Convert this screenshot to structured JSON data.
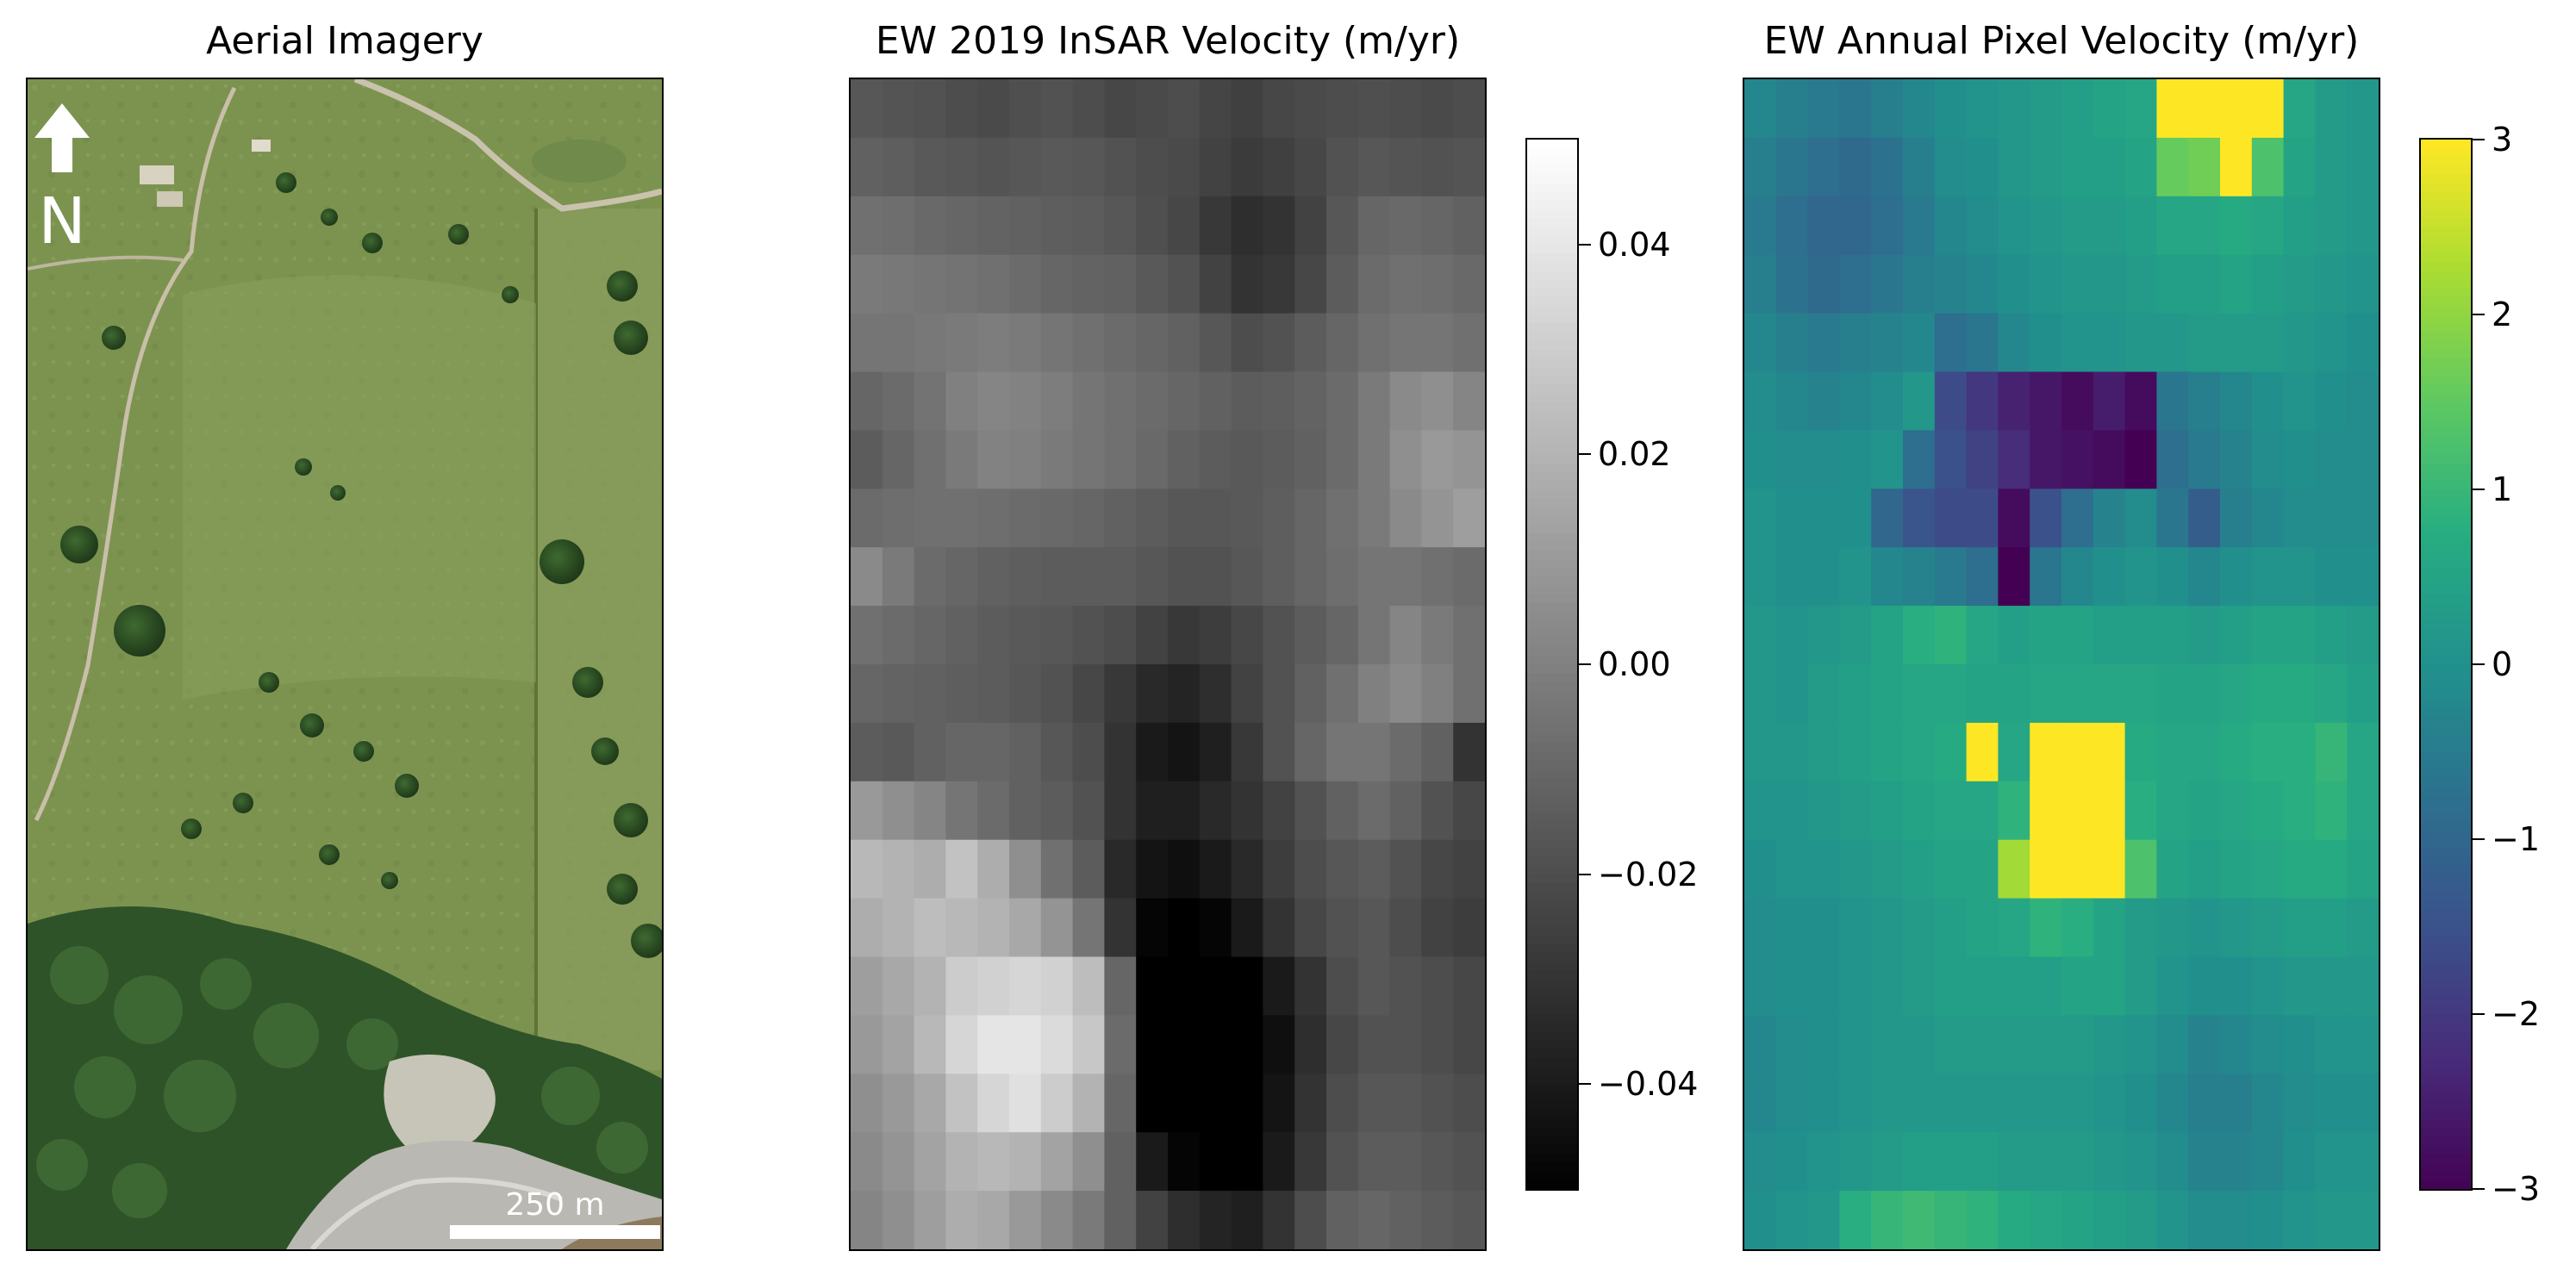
{
  "panels": [
    {
      "title": "Aerial Imagery",
      "north_label": "N",
      "scale_bar_label": "250 m"
    },
    {
      "title": "EW 2019 InSAR Velocity (m/yr)",
      "colormap": "gray",
      "colorbar": {
        "min": -0.05,
        "max": 0.05,
        "ticks": [
          0.04,
          0.02,
          0.0,
          -0.02,
          -0.04
        ],
        "tick_labels": [
          "0.04",
          "0.02",
          "0.00",
          "−0.02",
          "−0.04"
        ]
      }
    },
    {
      "title": "EW Annual Pixel Velocity (m/yr)",
      "colormap": "viridis",
      "colorbar": {
        "min": -3,
        "max": 3,
        "ticks": [
          3,
          2,
          1,
          0,
          -1,
          -2,
          -3
        ],
        "tick_labels": [
          "3",
          "2",
          "1",
          "0",
          "−1",
          "−2",
          "−3"
        ]
      }
    }
  ],
  "chart_data": [
    {
      "type": "heatmap",
      "title": "EW 2019 InSAR Velocity (m/yr)",
      "colormap": "gray",
      "vmin": -0.05,
      "vmax": 0.05,
      "rows": 20,
      "cols": 20,
      "values": [
        [
          -0.016,
          -0.017,
          -0.018,
          -0.02,
          -0.021,
          -0.019,
          -0.018,
          -0.02,
          -0.022,
          -0.021,
          -0.02,
          -0.023,
          -0.025,
          -0.022,
          -0.021,
          -0.02,
          -0.019,
          -0.02,
          -0.021,
          -0.02
        ],
        [
          -0.012,
          -0.013,
          -0.015,
          -0.016,
          -0.017,
          -0.016,
          -0.015,
          -0.016,
          -0.018,
          -0.02,
          -0.021,
          -0.024,
          -0.027,
          -0.025,
          -0.022,
          -0.018,
          -0.016,
          -0.017,
          -0.018,
          -0.017
        ],
        [
          -0.006,
          -0.007,
          -0.009,
          -0.01,
          -0.011,
          -0.012,
          -0.013,
          -0.014,
          -0.016,
          -0.019,
          -0.022,
          -0.028,
          -0.032,
          -0.03,
          -0.024,
          -0.016,
          -0.01,
          -0.009,
          -0.01,
          -0.012
        ],
        [
          -0.002,
          -0.003,
          -0.004,
          -0.005,
          -0.006,
          -0.008,
          -0.01,
          -0.011,
          -0.012,
          -0.015,
          -0.018,
          -0.024,
          -0.03,
          -0.028,
          -0.022,
          -0.014,
          -0.008,
          -0.006,
          -0.007,
          -0.009
        ],
        [
          -0.004,
          -0.004,
          -0.003,
          -0.002,
          -0.001,
          -0.002,
          -0.004,
          -0.006,
          -0.008,
          -0.01,
          -0.012,
          -0.016,
          -0.02,
          -0.018,
          -0.014,
          -0.01,
          -0.006,
          -0.004,
          -0.004,
          -0.006
        ],
        [
          -0.01,
          -0.008,
          -0.005,
          0.0,
          0.002,
          0.001,
          -0.001,
          -0.004,
          -0.006,
          -0.008,
          -0.01,
          -0.012,
          -0.014,
          -0.013,
          -0.011,
          -0.008,
          -0.002,
          0.004,
          0.006,
          0.002
        ],
        [
          -0.014,
          -0.01,
          -0.006,
          -0.002,
          0.001,
          0.0,
          -0.002,
          -0.004,
          -0.006,
          -0.009,
          -0.012,
          -0.014,
          -0.015,
          -0.014,
          -0.012,
          -0.008,
          -0.002,
          0.006,
          0.01,
          0.008
        ],
        [
          -0.008,
          -0.007,
          -0.006,
          -0.006,
          -0.007,
          -0.008,
          -0.009,
          -0.01,
          -0.012,
          -0.014,
          -0.016,
          -0.016,
          -0.015,
          -0.013,
          -0.01,
          -0.006,
          -0.002,
          0.004,
          0.008,
          0.012
        ],
        [
          0.004,
          -0.002,
          -0.008,
          -0.01,
          -0.012,
          -0.013,
          -0.014,
          -0.014,
          -0.014,
          -0.016,
          -0.018,
          -0.018,
          -0.016,
          -0.013,
          -0.01,
          -0.007,
          -0.004,
          -0.004,
          -0.006,
          -0.008
        ],
        [
          -0.006,
          -0.008,
          -0.01,
          -0.012,
          -0.014,
          -0.015,
          -0.016,
          -0.018,
          -0.02,
          -0.024,
          -0.028,
          -0.026,
          -0.022,
          -0.018,
          -0.014,
          -0.01,
          -0.004,
          0.002,
          -0.002,
          -0.006
        ],
        [
          -0.01,
          -0.011,
          -0.012,
          -0.013,
          -0.014,
          -0.016,
          -0.018,
          -0.022,
          -0.028,
          -0.034,
          -0.036,
          -0.032,
          -0.024,
          -0.018,
          -0.012,
          -0.006,
          0.0,
          0.004,
          0.0,
          -0.006
        ],
        [
          -0.014,
          -0.015,
          -0.012,
          -0.01,
          -0.01,
          -0.012,
          -0.016,
          -0.02,
          -0.03,
          -0.04,
          -0.042,
          -0.038,
          -0.028,
          -0.018,
          -0.01,
          -0.004,
          -0.004,
          -0.008,
          -0.012,
          -0.03
        ],
        [
          0.01,
          0.006,
          0.002,
          -0.004,
          -0.008,
          -0.012,
          -0.014,
          -0.018,
          -0.03,
          -0.038,
          -0.038,
          -0.034,
          -0.03,
          -0.024,
          -0.018,
          -0.012,
          -0.008,
          -0.012,
          -0.018,
          -0.022
        ],
        [
          0.022,
          0.02,
          0.018,
          0.026,
          0.018,
          0.006,
          -0.006,
          -0.014,
          -0.034,
          -0.042,
          -0.044,
          -0.04,
          -0.034,
          -0.026,
          -0.02,
          -0.016,
          -0.014,
          -0.018,
          -0.022,
          -0.024
        ],
        [
          0.018,
          0.02,
          0.024,
          0.022,
          0.02,
          0.016,
          0.008,
          -0.004,
          -0.03,
          -0.048,
          -0.05,
          -0.048,
          -0.04,
          -0.03,
          -0.022,
          -0.018,
          -0.016,
          -0.02,
          -0.024,
          -0.026
        ],
        [
          0.012,
          0.016,
          0.02,
          0.03,
          0.032,
          0.034,
          0.032,
          0.024,
          -0.01,
          -0.05,
          -0.05,
          -0.05,
          -0.05,
          -0.04,
          -0.03,
          -0.02,
          -0.016,
          -0.018,
          -0.02,
          -0.022
        ],
        [
          0.01,
          0.014,
          0.022,
          0.034,
          0.04,
          0.04,
          0.036,
          0.028,
          -0.008,
          -0.05,
          -0.05,
          -0.05,
          -0.05,
          -0.044,
          -0.032,
          -0.022,
          -0.018,
          -0.018,
          -0.02,
          -0.022
        ],
        [
          0.006,
          0.01,
          0.016,
          0.026,
          0.034,
          0.038,
          0.03,
          0.02,
          -0.01,
          -0.05,
          -0.05,
          -0.05,
          -0.05,
          -0.042,
          -0.03,
          -0.02,
          -0.016,
          -0.016,
          -0.018,
          -0.02
        ],
        [
          0.004,
          0.008,
          0.014,
          0.02,
          0.022,
          0.02,
          0.014,
          0.006,
          -0.012,
          -0.04,
          -0.048,
          -0.05,
          -0.05,
          -0.04,
          -0.028,
          -0.018,
          -0.014,
          -0.014,
          -0.016,
          -0.018
        ],
        [
          0.002,
          0.006,
          0.012,
          0.018,
          0.016,
          0.01,
          0.004,
          -0.002,
          -0.012,
          -0.024,
          -0.032,
          -0.036,
          -0.038,
          -0.03,
          -0.02,
          -0.012,
          -0.01,
          -0.012,
          -0.014,
          -0.016
        ]
      ]
    },
    {
      "type": "heatmap",
      "title": "EW Annual Pixel Velocity (m/yr)",
      "colormap": "viridis",
      "vmin": -3,
      "vmax": 3,
      "rows": 20,
      "cols": 20,
      "values": [
        [
          -0.2,
          -0.4,
          -0.5,
          -0.6,
          -0.4,
          -0.2,
          0.0,
          0.1,
          0.2,
          0.3,
          0.4,
          0.5,
          0.6,
          3.0,
          3.0,
          3.0,
          3.0,
          0.6,
          0.3,
          0.2
        ],
        [
          -0.4,
          -0.6,
          -0.8,
          -0.9,
          -0.7,
          -0.4,
          -0.1,
          0.0,
          0.2,
          0.3,
          0.4,
          0.4,
          0.5,
          1.6,
          1.7,
          3.0,
          1.3,
          0.5,
          0.3,
          0.2
        ],
        [
          -0.5,
          -0.8,
          -1.0,
          -1.0,
          -0.8,
          -0.5,
          -0.2,
          -0.1,
          0.1,
          0.2,
          0.3,
          0.3,
          0.4,
          0.6,
          0.6,
          0.7,
          0.6,
          0.4,
          0.3,
          0.2
        ],
        [
          -0.4,
          -0.7,
          -0.9,
          -0.8,
          -0.6,
          -0.4,
          -0.3,
          -0.2,
          0.0,
          0.1,
          0.2,
          0.2,
          0.3,
          0.4,
          0.4,
          0.5,
          0.4,
          0.3,
          0.2,
          0.1
        ],
        [
          -0.2,
          -0.4,
          -0.5,
          -0.4,
          -0.3,
          -0.2,
          -0.8,
          -0.6,
          -0.2,
          0.0,
          0.1,
          0.1,
          0.2,
          0.2,
          0.3,
          0.3,
          0.3,
          0.2,
          0.1,
          0.0
        ],
        [
          -0.1,
          -0.2,
          -0.3,
          -0.2,
          -0.1,
          0.2,
          -1.6,
          -2.0,
          -2.4,
          -2.6,
          -2.8,
          -2.5,
          -2.8,
          -0.6,
          -0.4,
          -0.2,
          0.0,
          0.1,
          0.0,
          -0.1
        ],
        [
          0.0,
          -0.1,
          -0.1,
          0.0,
          0.1,
          -0.8,
          -1.5,
          -1.8,
          -2.2,
          -2.6,
          -2.7,
          -2.8,
          -3.0,
          -0.8,
          -0.5,
          -0.3,
          -0.1,
          0.0,
          -0.1,
          -0.1
        ],
        [
          0.1,
          0.0,
          0.0,
          0.0,
          -1.0,
          -1.4,
          -1.6,
          -1.6,
          -2.8,
          -1.5,
          -0.8,
          -0.3,
          -0.1,
          -0.6,
          -1.2,
          -0.4,
          -0.2,
          -0.1,
          -0.1,
          -0.1
        ],
        [
          0.1,
          0.0,
          0.0,
          0.1,
          -0.2,
          -0.3,
          -0.5,
          -0.8,
          -3.0,
          -0.6,
          -0.2,
          0.0,
          0.1,
          0.0,
          -0.2,
          0.0,
          0.1,
          0.1,
          0.0,
          0.0
        ],
        [
          0.2,
          0.1,
          0.2,
          0.3,
          0.5,
          0.8,
          0.9,
          0.6,
          0.4,
          0.5,
          0.5,
          0.4,
          0.4,
          0.4,
          0.3,
          0.4,
          0.5,
          0.5,
          0.4,
          0.3
        ],
        [
          0.2,
          0.1,
          0.3,
          0.4,
          0.5,
          0.6,
          0.6,
          0.5,
          0.5,
          0.6,
          0.6,
          0.6,
          0.6,
          0.5,
          0.5,
          0.6,
          0.7,
          0.7,
          0.6,
          0.4
        ],
        [
          0.2,
          0.2,
          0.3,
          0.4,
          0.5,
          0.6,
          0.7,
          3.0,
          0.6,
          3.0,
          3.0,
          3.0,
          0.7,
          0.6,
          0.6,
          0.7,
          0.8,
          0.8,
          1.0,
          0.6
        ],
        [
          0.1,
          0.1,
          0.2,
          0.3,
          0.4,
          0.5,
          0.6,
          0.6,
          0.9,
          3.0,
          3.0,
          3.0,
          0.8,
          0.6,
          0.5,
          0.6,
          0.7,
          0.8,
          0.9,
          0.6
        ],
        [
          0.0,
          0.1,
          0.1,
          0.2,
          0.3,
          0.4,
          0.5,
          0.5,
          2.2,
          3.0,
          3.0,
          3.0,
          1.3,
          0.5,
          0.4,
          0.5,
          0.6,
          0.7,
          0.7,
          0.5
        ],
        [
          -0.1,
          0.0,
          0.0,
          0.1,
          0.2,
          0.3,
          0.4,
          0.5,
          0.6,
          0.9,
          0.8,
          0.5,
          0.3,
          0.2,
          0.1,
          0.2,
          0.3,
          0.4,
          0.4,
          0.3
        ],
        [
          -0.1,
          0.0,
          0.0,
          0.1,
          0.2,
          0.3,
          0.4,
          0.4,
          0.4,
          0.4,
          0.5,
          0.5,
          0.3,
          0.1,
          0.0,
          0.0,
          0.1,
          0.2,
          0.2,
          0.2
        ],
        [
          -0.2,
          -0.1,
          0.0,
          0.1,
          0.2,
          0.2,
          0.3,
          0.3,
          0.3,
          0.3,
          0.3,
          0.2,
          0.1,
          -0.1,
          -0.3,
          -0.2,
          -0.1,
          0.0,
          0.1,
          0.1
        ],
        [
          -0.2,
          -0.1,
          0.0,
          0.1,
          0.2,
          0.2,
          0.2,
          0.2,
          0.2,
          0.2,
          0.2,
          0.1,
          0.0,
          -0.2,
          -0.4,
          -0.4,
          -0.2,
          -0.1,
          0.0,
          0.0
        ],
        [
          -0.1,
          0.0,
          0.1,
          0.2,
          0.3,
          0.4,
          0.4,
          0.4,
          0.3,
          0.3,
          0.3,
          0.2,
          0.1,
          -0.1,
          -0.3,
          -0.3,
          -0.2,
          0.0,
          0.1,
          0.1
        ],
        [
          0.0,
          0.1,
          0.2,
          0.8,
          1.0,
          1.1,
          1.0,
          0.9,
          0.7,
          0.6,
          0.5,
          0.4,
          0.3,
          0.1,
          -0.1,
          -0.1,
          0.0,
          0.1,
          0.2,
          0.2
        ]
      ]
    }
  ]
}
